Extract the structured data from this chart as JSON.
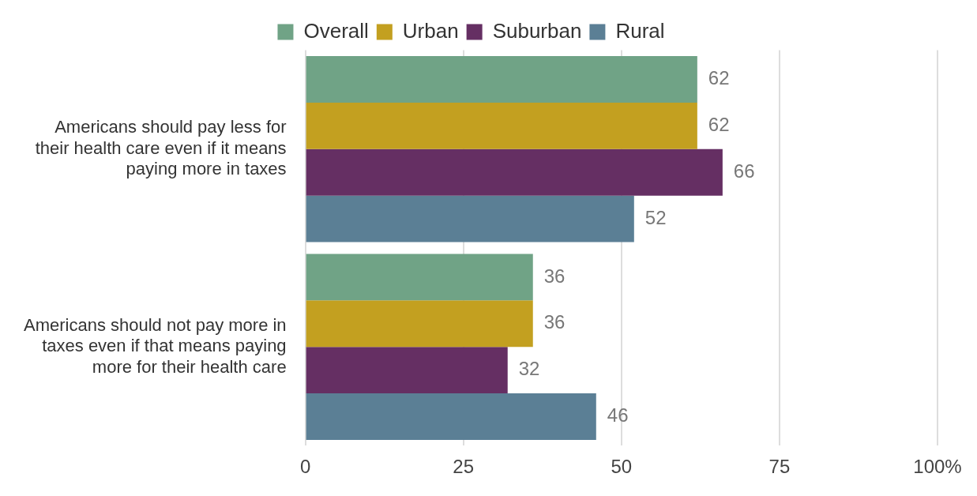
{
  "chart_data": {
    "type": "bar",
    "orientation": "horizontal",
    "categories": [
      "Americans should pay less for their health care even if it means paying more in taxes",
      "Americans should not pay more in taxes even if that means paying more for their health care"
    ],
    "series": [
      {
        "name": "Overall",
        "color": "#70a386",
        "values": [
          62,
          36
        ]
      },
      {
        "name": "Urban",
        "color": "#c3a020",
        "values": [
          62,
          36
        ]
      },
      {
        "name": "Suburban",
        "color": "#652f63",
        "values": [
          66,
          32
        ]
      },
      {
        "name": "Rural",
        "color": "#5b7f95",
        "values": [
          52,
          46
        ]
      }
    ],
    "xlim": [
      0,
      100
    ],
    "xticks": [
      0,
      25,
      50,
      75,
      {
        "value": 100,
        "label": "100%"
      }
    ],
    "grid": "x",
    "legend": "top",
    "data_labels": true
  }
}
